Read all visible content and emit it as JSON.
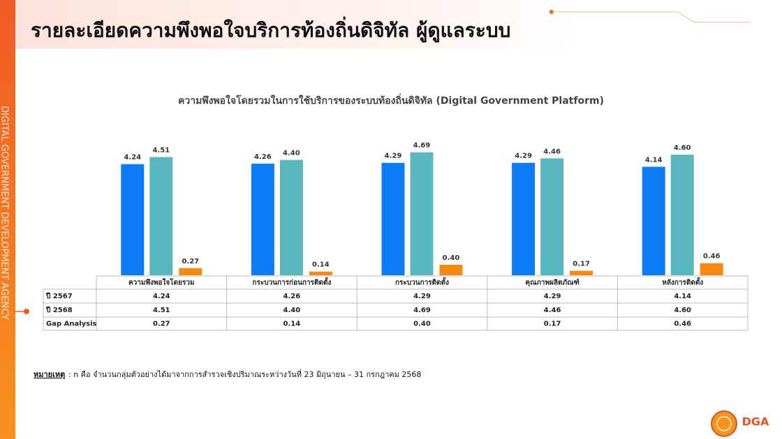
{
  "header": {
    "title": "รายละเอียดความพึงพอใจบริการท้องถิ่นดิจิทัล ผู้ดูแลระบบ"
  },
  "sidebar": {
    "text": "DIGITAL GOVERNMENT DEVELOPMENT AGENCY"
  },
  "note": {
    "label": "หมายเหตุ",
    "text": ":  n คือ จำนวนกลุ่มตัวอย่างได้มาจากการสำรวจเชิงปริมาณระหว่างวันที่ 23 มิถุนายน – 31 กรกฎาคม 2568"
  },
  "logo": {
    "text": "DGA"
  },
  "chart_data": {
    "type": "bar",
    "title": "ความพึงพอใจโดยรวมในการใช้บริการของระบบท้องถิ่นดิจิทัล (Digital Government Platform)",
    "categories": [
      "ความพึงพอใจโดยรวม",
      "กระบวนการก่อนการติดตั้ง",
      "กระบวนการติดตั้ง",
      "คุณภาพผลิตภัณฑ์",
      "หลังการติดตั้ง"
    ],
    "series": [
      {
        "name": "ปี 2567",
        "color": "#0b7cf6",
        "values": [
          4.24,
          4.26,
          4.29,
          4.29,
          4.14
        ],
        "value_labels": [
          "4.24",
          "4.26",
          "4.29",
          "4.29",
          "4.14"
        ]
      },
      {
        "name": "ปี 2568",
        "color": "#59b8bf",
        "values": [
          4.51,
          4.4,
          4.69,
          4.46,
          4.6
        ],
        "value_labels": [
          "4.51",
          "4.40",
          "4.69",
          "4.46",
          "4.60"
        ]
      },
      {
        "name": "Gap Analysis",
        "color": "#f7890f",
        "values": [
          0.27,
          0.14,
          0.4,
          0.17,
          0.46
        ],
        "value_labels": [
          "0.27",
          "0.14",
          "0.40",
          "0.17",
          "0.46"
        ]
      }
    ],
    "ylim": [
      0,
      5
    ]
  }
}
